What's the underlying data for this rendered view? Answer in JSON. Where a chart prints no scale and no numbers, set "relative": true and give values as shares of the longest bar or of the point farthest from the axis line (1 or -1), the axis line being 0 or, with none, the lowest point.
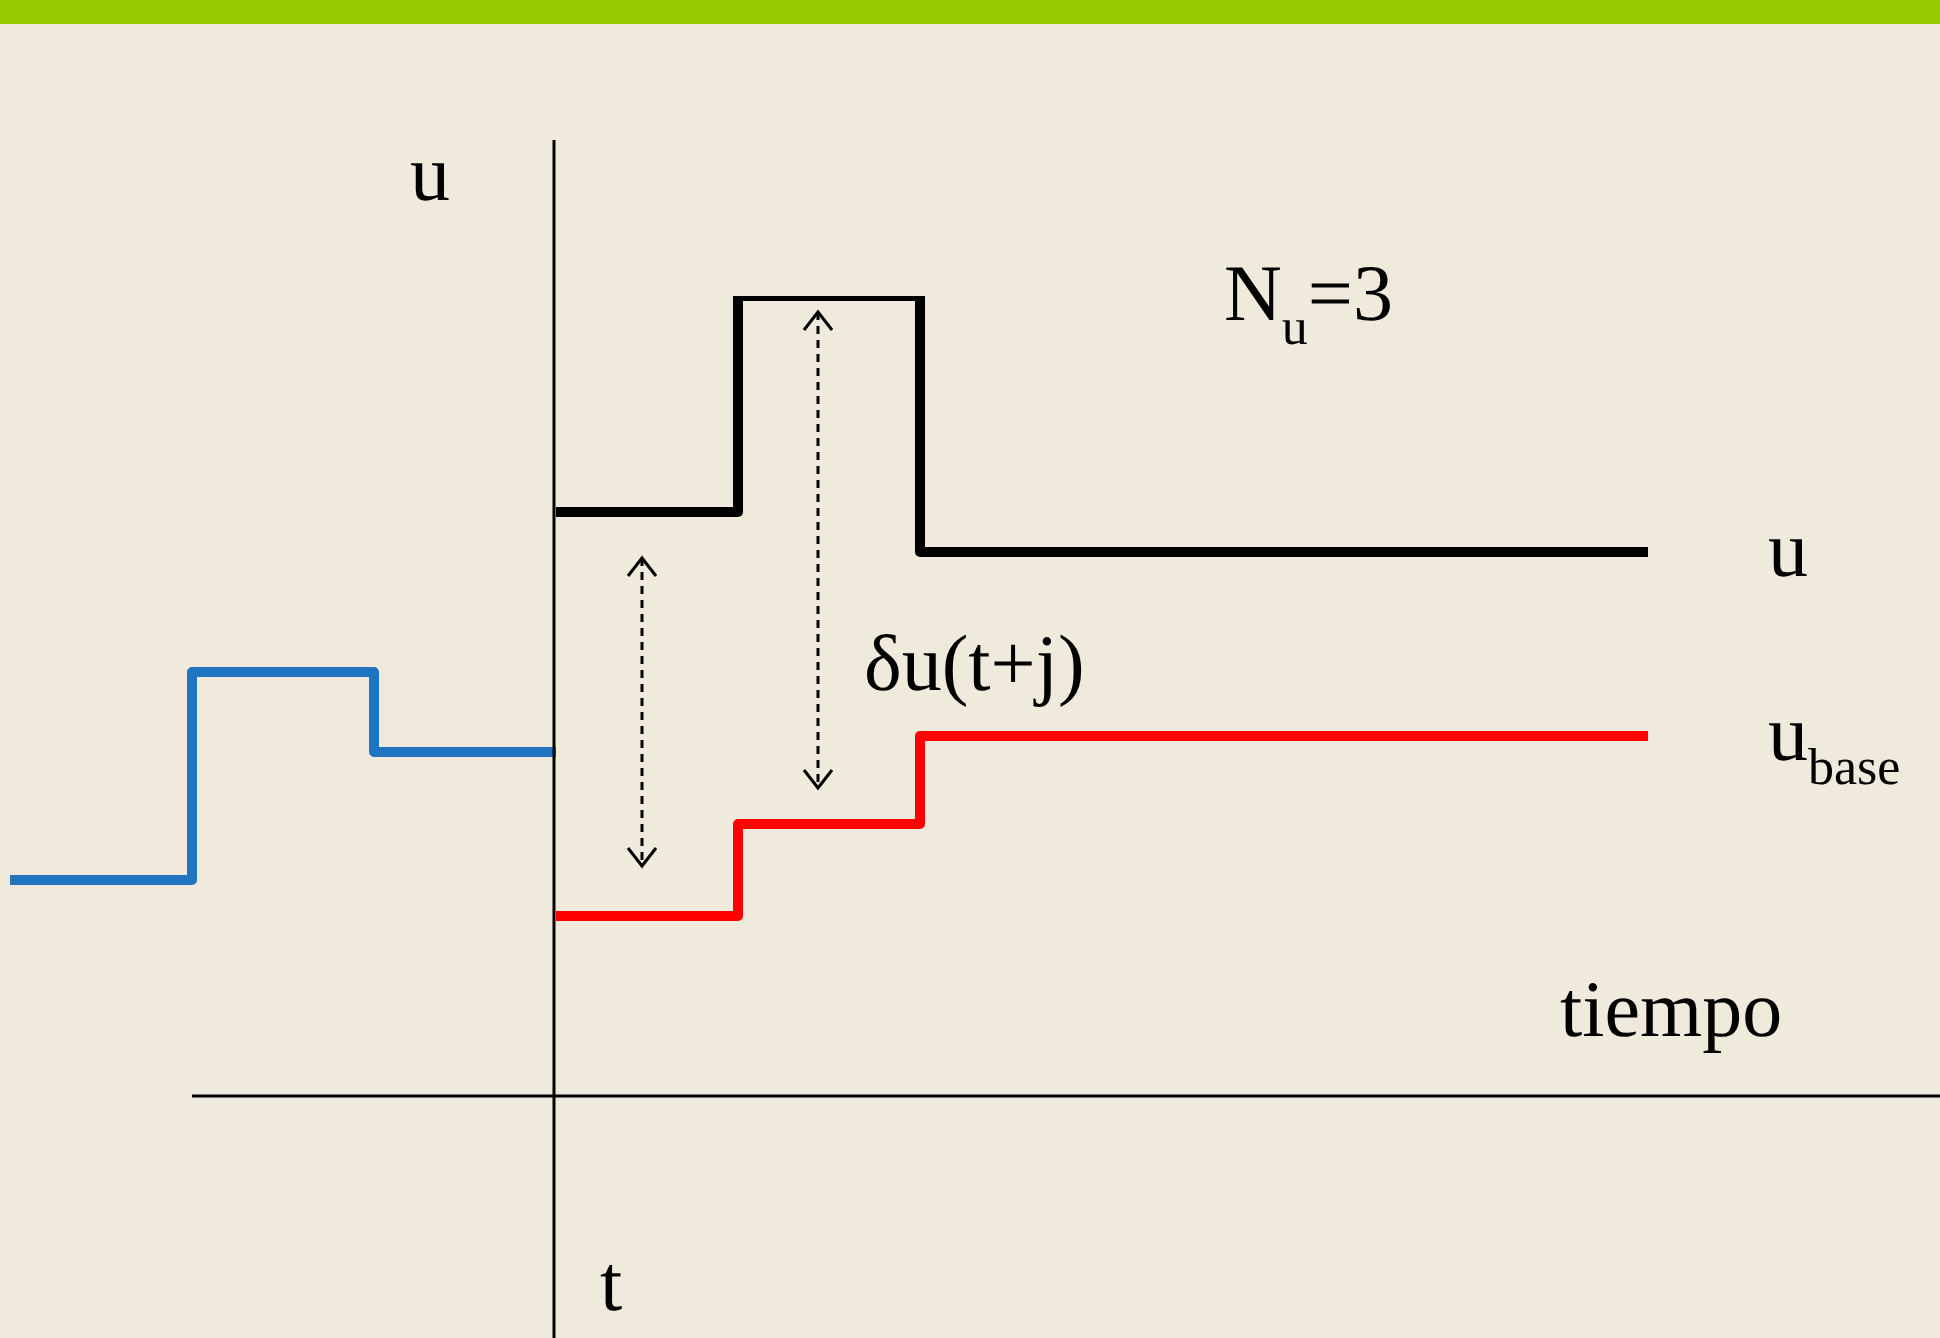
{
  "chart_data": {
    "type": "step",
    "relative": true,
    "ylabel": "u",
    "xlabel": "tiempo",
    "categories": [
      null,
      null,
      null,
      null,
      null,
      null,
      null,
      null,
      null,
      null,
      null
    ],
    "series": [
      {
        "color": "#1f74c0",
        "values": [
          0.27,
          0.53,
          0.43,
          0.43,
          null,
          null,
          null,
          null,
          null,
          null,
          null
        ]
      },
      {
        "name": "u$_{base}$",
        "color": "#ff0000",
        "values": [
          null,
          null,
          null,
          0.225,
          0.34,
          0.45,
          0.45,
          0.45,
          0.45,
          0.45,
          null
        ]
      },
      {
        "name": "u",
        "color": "#000000",
        "values": [
          null,
          null,
          null,
          0.73,
          1.0,
          0.68,
          0.68,
          0.68,
          0.68,
          0.68,
          null
        ]
      }
    ],
    "annotations": [
      "N$_{u}$=3",
      "δu(t+j)",
      "t"
    ],
    "legend": false
  }
}
